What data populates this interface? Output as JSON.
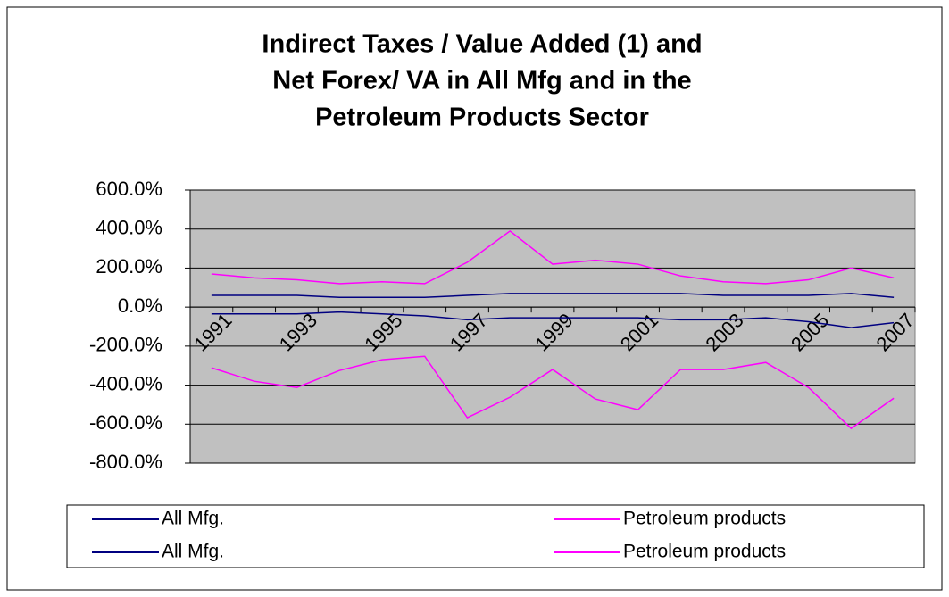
{
  "chart_data": {
    "type": "line",
    "title": [
      "Indirect Taxes / Value Added (1) and",
      "Net Forex/ VA in All Mfg and in the",
      "Petroleum Products Sector"
    ],
    "categories": [
      "1991",
      null,
      "1993",
      null,
      "1995",
      null,
      "1997",
      null,
      "1999",
      null,
      "2001",
      null,
      "2003",
      null,
      "2005",
      null,
      "2007"
    ],
    "series": [
      {
        "name": "All Mfg.",
        "color": "#000080",
        "values": [
          60,
          60,
          60,
          50,
          50,
          50,
          60,
          70,
          70,
          70,
          70,
          70,
          60,
          60,
          60,
          70,
          50
        ]
      },
      {
        "name": "Petroleum products",
        "color": "#ff00ff",
        "values": [
          170,
          150,
          140,
          120,
          130,
          120,
          230,
          390,
          220,
          240,
          220,
          160,
          130,
          120,
          140,
          200,
          150
        ]
      },
      {
        "name": "All Mfg.",
        "color": "#000080",
        "values": [
          -35,
          -35,
          -35,
          -25,
          -35,
          -45,
          -65,
          -55,
          -55,
          -55,
          -55,
          -65,
          -65,
          -55,
          -75,
          -105,
          -80
        ]
      },
      {
        "name": "Petroleum products",
        "color": "#ff00ff",
        "values": [
          -311,
          -380,
          -412,
          -325,
          -270,
          -252,
          -567,
          -462,
          -320,
          -471,
          -526,
          -320,
          -320,
          -284,
          -412,
          -622,
          -467
        ]
      }
    ],
    "ylim": [
      -800,
      600
    ],
    "yticks": [
      {
        "value": -800,
        "label": "-800.0%"
      },
      {
        "value": -600,
        "label": "-600.0%"
      },
      {
        "value": -400,
        "label": "-400.0%"
      },
      {
        "value": -200,
        "label": "-200.0%"
      },
      {
        "value": 0,
        "label": "0.0%"
      },
      {
        "value": 200,
        "label": "200.0%"
      },
      {
        "value": 400,
        "label": "400.0%"
      },
      {
        "value": 600,
        "label": "600.0%"
      }
    ],
    "grid": true
  }
}
